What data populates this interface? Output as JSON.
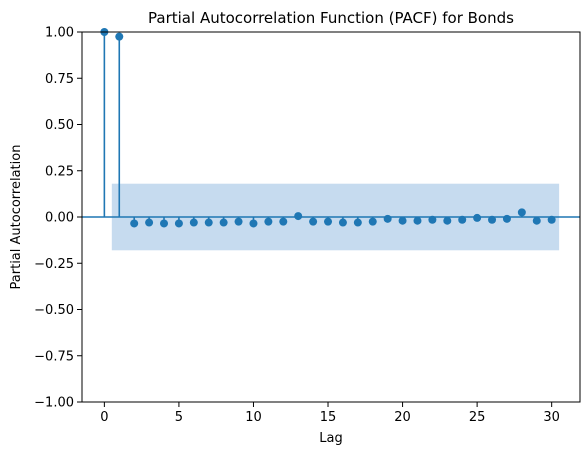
{
  "chart_data": {
    "type": "stem",
    "title": "Partial Autocorrelation Function (PACF) for Bonds",
    "xlabel": "Lag",
    "ylabel": "Partial Autocorrelation",
    "xlim": [
      -1.5,
      31.9
    ],
    "ylim": [
      -1.0,
      1.0
    ],
    "x_ticks": [
      0,
      5,
      10,
      15,
      20,
      25,
      30
    ],
    "x_tick_labels": [
      "0",
      "5",
      "10",
      "15",
      "20",
      "25",
      "30"
    ],
    "y_ticks": [
      -1.0,
      -0.75,
      -0.5,
      -0.25,
      0.0,
      0.25,
      0.5,
      0.75,
      1.0
    ],
    "y_tick_labels": [
      "−1.00",
      "−0.75",
      "−0.50",
      "−0.25",
      "0.00",
      "0.25",
      "0.50",
      "0.75",
      "1.00"
    ],
    "lags": [
      0,
      1,
      2,
      3,
      4,
      5,
      6,
      7,
      8,
      9,
      10,
      11,
      12,
      13,
      14,
      15,
      16,
      17,
      18,
      19,
      20,
      21,
      22,
      23,
      24,
      25,
      26,
      27,
      28,
      29,
      30
    ],
    "values": [
      1.0,
      0.975,
      -0.035,
      -0.03,
      -0.035,
      -0.035,
      -0.03,
      -0.03,
      -0.03,
      -0.025,
      -0.035,
      -0.025,
      -0.025,
      0.005,
      -0.025,
      -0.025,
      -0.03,
      -0.03,
      -0.025,
      -0.01,
      -0.02,
      -0.02,
      -0.015,
      -0.02,
      -0.015,
      -0.005,
      -0.015,
      -0.01,
      0.025,
      -0.02,
      -0.015
    ],
    "confidence_band": {
      "x_start": 0.5,
      "x_end": 30.5,
      "upper": 0.18,
      "lower": -0.18
    },
    "colors": {
      "stem": "#1f77b4",
      "marker": "#1f77b4",
      "band": "#c6dbef",
      "zero_line": "#1f77b4"
    },
    "grid": false,
    "legend": "none"
  }
}
